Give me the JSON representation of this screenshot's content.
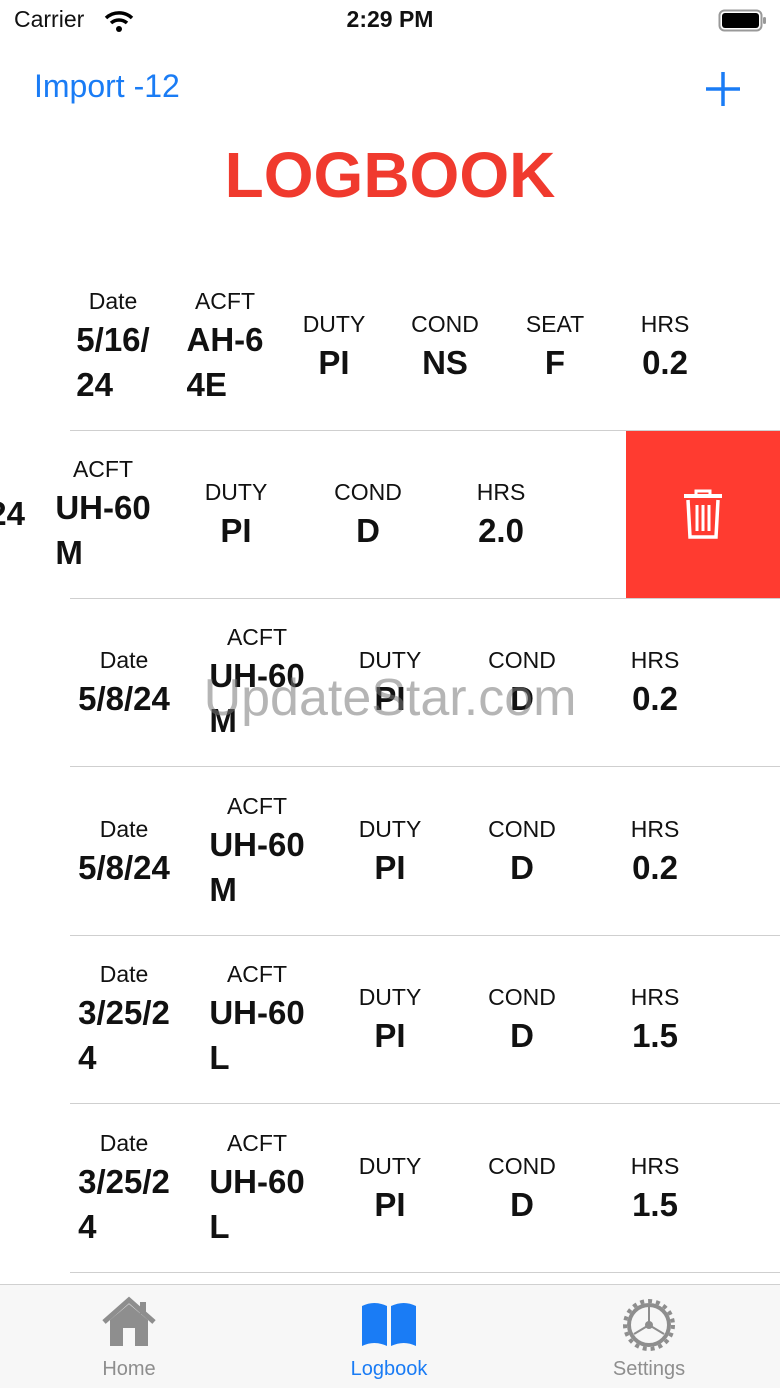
{
  "status_bar": {
    "carrier": "Carrier",
    "time": "2:29 PM"
  },
  "nav": {
    "import_button": "Import -12"
  },
  "title": "LOGBOOK",
  "column_labels": {
    "date": "Date",
    "acft": "ACFT",
    "duty": "DUTY",
    "cond": "COND",
    "seat": "SEAT",
    "hrs": "HRS"
  },
  "entries": [
    {
      "date": "5/16/\n24",
      "acft": "AH-6\n4E",
      "duty": "PI",
      "cond": "NS",
      "seat": "F",
      "hrs": "0.2"
    },
    {
      "date": "24",
      "acft": "UH-60\nM",
      "duty": "PI",
      "cond": "D",
      "hrs": "2.0"
    },
    {
      "date": "5/8/24",
      "acft": "UH-60\nM",
      "duty": "PI",
      "cond": "D",
      "hrs": "0.2"
    },
    {
      "date": "5/8/24",
      "acft": "UH-60\nM",
      "duty": "PI",
      "cond": "D",
      "hrs": "0.2"
    },
    {
      "date": "3/25/2\n4",
      "acft": "UH-60\nL",
      "duty": "PI",
      "cond": "D",
      "hrs": "1.5"
    },
    {
      "date": "3/25/2\n4",
      "acft": "UH-60\nL",
      "duty": "PI",
      "cond": "D",
      "hrs": "1.5"
    }
  ],
  "watermark": "UpdateStar.com",
  "tab_bar": {
    "tabs": [
      "Home",
      "Logbook",
      "Settings"
    ]
  }
}
